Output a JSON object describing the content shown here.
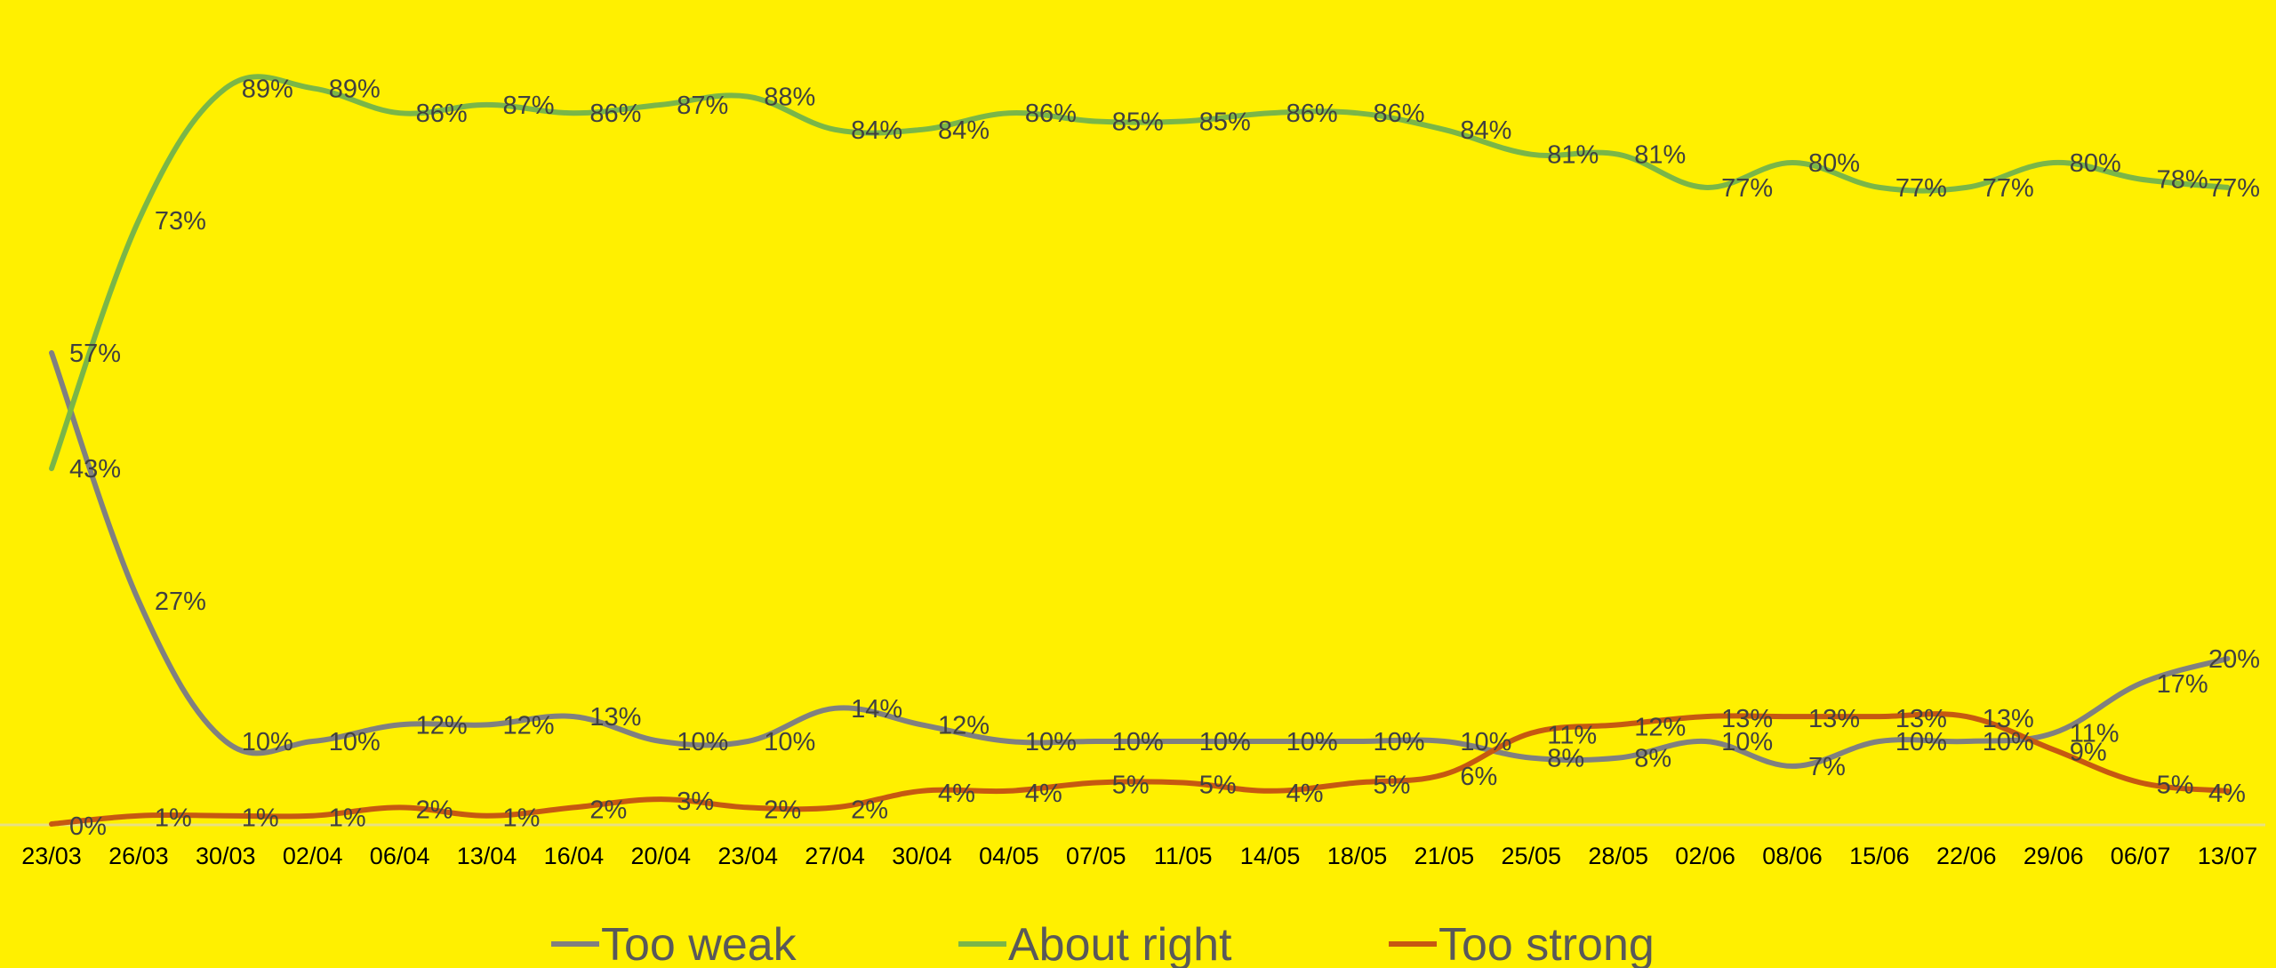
{
  "chart_data": {
    "type": "line",
    "title": "",
    "xlabel": "",
    "ylabel": "",
    "ylim": [
      0,
      100
    ],
    "grid": false,
    "legend_position": "bottom",
    "background_color": "#FFF000",
    "x": [
      "23/03",
      "26/03",
      "30/03",
      "02/04",
      "06/04",
      "13/04",
      "16/04",
      "20/04",
      "23/04",
      "27/04",
      "30/04",
      "04/05",
      "07/05",
      "11/05",
      "14/05",
      "18/05",
      "21/05",
      "25/05",
      "28/05",
      "02/06",
      "08/06",
      "15/06",
      "22/06",
      "29/06",
      "06/07",
      "13/07"
    ],
    "series": [
      {
        "name": "Too weak",
        "color": "#808080",
        "values": [
          57,
          27,
          10,
          10,
          12,
          12,
          13,
          10,
          10,
          14,
          12,
          10,
          10,
          10,
          10,
          10,
          10,
          8,
          8,
          10,
          7,
          10,
          10,
          11,
          17,
          20
        ],
        "labels": [
          "57%",
          "27%",
          "10%",
          "10%",
          "12%",
          "12%",
          "13%",
          "10%",
          "10%",
          "14%",
          "12%",
          "10%",
          "10%",
          "10%",
          "10%",
          "10%",
          "10%",
          "8%",
          "8%",
          "10%",
          "7%",
          "10%",
          "10%",
          "11%",
          "17%",
          "20%"
        ]
      },
      {
        "name": "About right",
        "color": "#7AB648",
        "values": [
          43,
          73,
          89,
          89,
          86,
          87,
          86,
          87,
          88,
          84,
          84,
          86,
          85,
          85,
          86,
          86,
          84,
          81,
          81,
          77,
          80,
          77,
          77,
          80,
          78,
          77
        ],
        "labels": [
          "43%",
          "73%",
          "89%",
          "89%",
          "86%",
          "87%",
          "86%",
          "87%",
          "88%",
          "84%",
          "84%",
          "86%",
          "85%",
          "85%",
          "86%",
          "86%",
          "84%",
          "81%",
          "81%",
          "77%",
          "80%",
          "77%",
          "77%",
          "80%",
          "78%",
          "77%"
        ]
      },
      {
        "name": "Too strong",
        "color": "#C65911",
        "values": [
          0,
          1,
          1,
          1,
          2,
          1,
          2,
          3,
          2,
          2,
          4,
          4,
          5,
          5,
          4,
          5,
          6,
          11,
          12,
          13,
          13,
          13,
          13,
          9,
          5,
          4
        ],
        "labels": [
          "0%",
          "1%",
          "1%",
          "1%",
          "2%",
          "1%",
          "2%",
          "3%",
          "2%",
          "2%",
          "4%",
          "4%",
          "5%",
          "5%",
          "4%",
          "5%",
          "6%",
          "11%",
          "12%",
          "13%",
          "13%",
          "13%",
          "13%",
          "9%",
          "5%",
          "4%"
        ]
      }
    ]
  }
}
